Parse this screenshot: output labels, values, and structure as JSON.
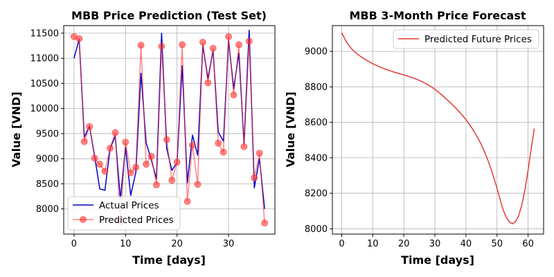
{
  "chart_data": [
    {
      "type": "line",
      "title": "MBB Price Prediction (Test Set)",
      "xlabel": "Time [days]",
      "ylabel": "Value [VND]",
      "xlim": [
        -2,
        39
      ],
      "ylim": [
        7500,
        11650
      ],
      "xticks": [
        0,
        10,
        20,
        30
      ],
      "yticks": [
        8000,
        8500,
        9000,
        9500,
        10000,
        10500,
        11000,
        11500
      ],
      "grid": true,
      "legend_position": "lower-left",
      "series": [
        {
          "name": "Actual Prices",
          "color": "#0000cc",
          "marker": "none",
          "x": [
            0,
            1,
            2,
            3,
            4,
            5,
            6,
            7,
            8,
            9,
            10,
            11,
            12,
            13,
            14,
            15,
            16,
            17,
            18,
            19,
            20,
            21,
            22,
            23,
            24,
            25,
            26,
            27,
            28,
            29,
            30,
            31,
            32,
            33,
            34,
            35,
            36,
            37
          ],
          "y": [
            11000,
            11380,
            9430,
            9650,
            9050,
            8400,
            8370,
            9200,
            9450,
            8200,
            9230,
            8270,
            8730,
            10700,
            9320,
            8980,
            8600,
            11500,
            9200,
            8770,
            8920,
            10850,
            8520,
            9470,
            9070,
            11250,
            10600,
            11150,
            9530,
            9350,
            11350,
            10400,
            11100,
            9300,
            11560,
            8420,
            9000,
            8000
          ]
        },
        {
          "name": "Predicted Prices",
          "color": "#ff3333",
          "marker": "circle",
          "x": [
            0,
            1,
            2,
            3,
            4,
            5,
            6,
            7,
            8,
            9,
            10,
            11,
            12,
            13,
            14,
            15,
            16,
            17,
            18,
            19,
            20,
            21,
            22,
            23,
            24,
            25,
            26,
            27,
            28,
            29,
            30,
            31,
            32,
            33,
            34,
            35,
            36,
            37
          ],
          "y": [
            11430,
            11390,
            9340,
            9640,
            9010,
            8890,
            8750,
            9210,
            9520,
            7740,
            9330,
            8720,
            8830,
            11260,
            8890,
            9050,
            8480,
            11240,
            9380,
            8570,
            8930,
            11270,
            8150,
            9270,
            8490,
            11320,
            10510,
            11200,
            9310,
            9130,
            11430,
            10270,
            11270,
            9240,
            11340,
            8620,
            9110,
            7720
          ]
        }
      ]
    },
    {
      "type": "line",
      "title": "MBB 3-Month Price Forecast",
      "xlabel": "Time [days]",
      "ylabel": "Value [VND]",
      "xlim": [
        -3,
        65
      ],
      "ylim": [
        7970,
        9145
      ],
      "xticks": [
        0,
        10,
        20,
        30,
        40,
        50,
        60
      ],
      "yticks": [
        8000,
        8200,
        8400,
        8600,
        8800,
        9000
      ],
      "grid": true,
      "legend_position": "top-right",
      "series": [
        {
          "name": "Predicted Future Prices",
          "color": "#e03c31",
          "marker": "none",
          "x": [
            0,
            1,
            2,
            3,
            4,
            5,
            6,
            7,
            8,
            9,
            10,
            11,
            12,
            13,
            14,
            15,
            16,
            17,
            18,
            19,
            20,
            21,
            22,
            23,
            24,
            25,
            26,
            27,
            28,
            29,
            30,
            31,
            32,
            33,
            34,
            35,
            36,
            37,
            38,
            39,
            40,
            41,
            42,
            43,
            44,
            45,
            46,
            47,
            48,
            49,
            50,
            51,
            52,
            53,
            54,
            55,
            56,
            57,
            58,
            59,
            60,
            61,
            62
          ],
          "y": [
            9105,
            9070,
            9040,
            9018,
            9000,
            8985,
            8972,
            8960,
            8950,
            8940,
            8930,
            8922,
            8914,
            8907,
            8900,
            8894,
            8888,
            8882,
            8877,
            8872,
            8867,
            8862,
            8856,
            8850,
            8843,
            8836,
            8828,
            8819,
            8809,
            8798,
            8786,
            8772,
            8758,
            8742,
            8726,
            8710,
            8693,
            8675,
            8656,
            8636,
            8615,
            8591,
            8565,
            8537,
            8506,
            8472,
            8433,
            8389,
            8341,
            8286,
            8228,
            8165,
            8105,
            8065,
            8038,
            8028,
            8040,
            8075,
            8135,
            8220,
            8330,
            8450,
            8565
          ]
        }
      ]
    }
  ]
}
